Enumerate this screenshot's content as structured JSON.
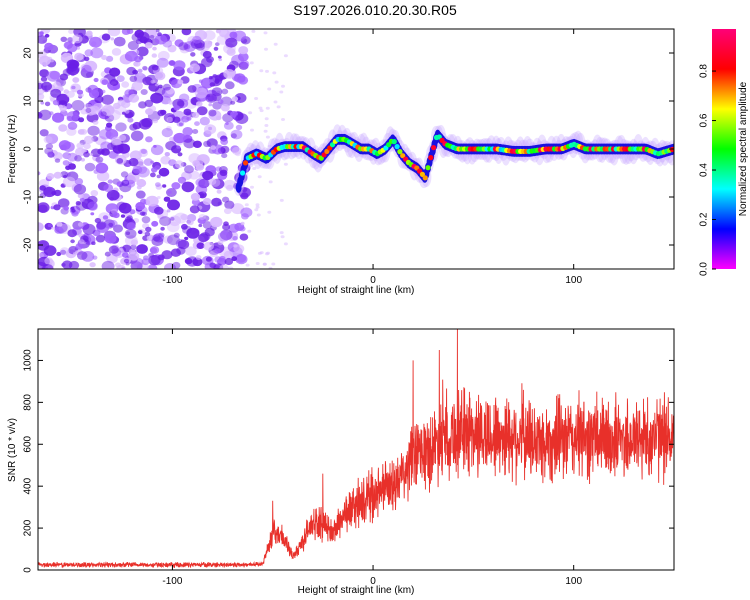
{
  "title": "S197.2026.010.20.30.R05",
  "chart_data": [
    {
      "type": "heatmap",
      "xlabel": "Height of straight line (km)",
      "ylabel": "Frequency (Hz)",
      "xlim": [
        -167,
        150
      ],
      "ylim": [
        -25,
        25
      ],
      "xticks": [
        -100,
        0,
        100
      ],
      "yticks": [
        20,
        10,
        0,
        -10,
        -20
      ],
      "colorbar": {
        "label": "Normalized spectral amplitude",
        "range": [
          0,
          0.97
        ],
        "ticks": [
          0.0,
          0.2,
          0.4,
          0.6,
          0.8
        ],
        "colormap": [
          "#ff00ff",
          "#0000ff",
          "#00ffff",
          "#00ff00",
          "#ffff00",
          "#ff0000",
          "#ff0077"
        ]
      },
      "noise_region_x": [
        -167,
        -63
      ],
      "ridge_points": [
        [
          -67,
          -8
        ],
        [
          -63,
          -2
        ],
        [
          -58,
          -1
        ],
        [
          -53,
          -2
        ],
        [
          -48,
          0
        ],
        [
          -44,
          0.5
        ],
        [
          -40,
          0.5
        ],
        [
          -35,
          0.5
        ],
        [
          -30,
          -1
        ],
        [
          -26,
          -2
        ],
        [
          -22,
          0
        ],
        [
          -18,
          2
        ],
        [
          -14,
          2
        ],
        [
          -10,
          1
        ],
        [
          -6,
          0
        ],
        [
          -2,
          0
        ],
        [
          2,
          -1
        ],
        [
          6,
          0
        ],
        [
          10,
          2
        ],
        [
          14,
          -1
        ],
        [
          18,
          -3
        ],
        [
          22,
          -4
        ],
        [
          26,
          -6
        ],
        [
          30,
          0
        ],
        [
          32,
          3
        ],
        [
          36,
          1
        ],
        [
          42,
          0
        ],
        [
          48,
          0
        ],
        [
          55,
          0
        ],
        [
          62,
          0
        ],
        [
          70,
          -0.5
        ],
        [
          78,
          -0.5
        ],
        [
          86,
          0
        ],
        [
          94,
          0
        ],
        [
          100,
          1
        ],
        [
          106,
          0
        ],
        [
          112,
          0
        ],
        [
          120,
          0
        ],
        [
          128,
          0
        ],
        [
          136,
          0
        ],
        [
          142,
          -1
        ],
        [
          150,
          0
        ]
      ]
    },
    {
      "type": "line",
      "xlabel": "Height of straight line (km)",
      "ylabel": "SNR (10 * v/v)",
      "xlim": [
        -167,
        150
      ],
      "ylim": [
        0,
        1150
      ],
      "xticks": [
        -100,
        0,
        100
      ],
      "yticks": [
        0,
        200,
        400,
        600,
        800,
        1000
      ],
      "color": "#e8302a",
      "series_anchors": [
        [
          -167,
          25
        ],
        [
          -100,
          25
        ],
        [
          -63,
          25
        ],
        [
          -55,
          30
        ],
        [
          -50,
          180
        ],
        [
          -45,
          160
        ],
        [
          -40,
          60
        ],
        [
          -35,
          140
        ],
        [
          -30,
          230
        ],
        [
          -25,
          220
        ],
        [
          -20,
          175
        ],
        [
          -15,
          260
        ],
        [
          -10,
          300
        ],
        [
          -5,
          320
        ],
        [
          0,
          360
        ],
        [
          5,
          380
        ],
        [
          10,
          400
        ],
        [
          15,
          440
        ],
        [
          20,
          540
        ],
        [
          25,
          560
        ],
        [
          30,
          580
        ],
        [
          35,
          660
        ],
        [
          40,
          640
        ],
        [
          45,
          660
        ],
        [
          55,
          640
        ],
        [
          70,
          640
        ],
        [
          85,
          610
        ],
        [
          100,
          630
        ],
        [
          120,
          620
        ],
        [
          135,
          630
        ],
        [
          150,
          640
        ]
      ],
      "peaks": [
        [
          -50,
          330
        ],
        [
          -25,
          460
        ],
        [
          20,
          1000
        ],
        [
          33,
          1050
        ],
        [
          42,
          1150
        ],
        [
          48,
          850
        ]
      ]
    }
  ]
}
